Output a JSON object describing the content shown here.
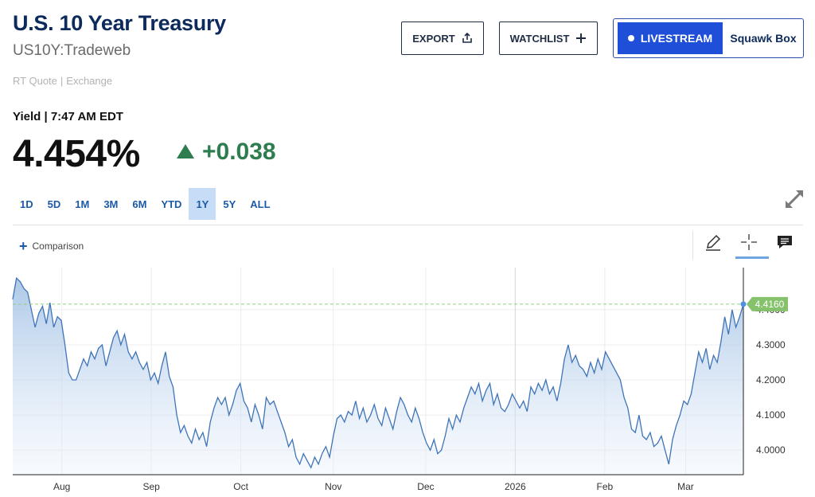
{
  "header": {
    "title": "U.S. 10 Year Treasury",
    "symbol": "US10Y:Tradeweb",
    "quote_type": "RT Quote",
    "quote_sep": "|",
    "exchange": "Exchange"
  },
  "actions": {
    "export_label": "EXPORT",
    "watchlist_label": "WATCHLIST",
    "livestream_label": "LIVESTREAM",
    "squawk_label": "Squawk Box"
  },
  "quote": {
    "label": "Yield | 7:47 AM EDT",
    "price": "4.454%",
    "change": "+0.038",
    "change_color": "#2e7d4f"
  },
  "ranges": [
    "1D",
    "5D",
    "1M",
    "3M",
    "6M",
    "YTD",
    "1Y",
    "5Y",
    "ALL"
  ],
  "active_range": "1Y",
  "toolbar": {
    "comparison_label": "Comparison",
    "tools": [
      "pencil-icon",
      "crosshair-icon",
      "comment-icon"
    ],
    "active_tool": "crosshair-icon"
  },
  "chart_data": {
    "type": "area",
    "current_label": "4.4160",
    "current_value": 4.416,
    "ylim": [
      3.93,
      4.52
    ],
    "yticks": [
      "4.4000",
      "4.3000",
      "4.2000",
      "4.1000",
      "4.0000"
    ],
    "ytick_values": [
      4.4,
      4.3,
      4.2,
      4.1,
      4.0
    ],
    "xticks": [
      "Aug",
      "Sep",
      "Oct",
      "Nov",
      "Dec",
      "2026",
      "Feb",
      "Mar"
    ],
    "xtick_positions": [
      17,
      48,
      79,
      111,
      143,
      174,
      205,
      233
    ],
    "x_range": [
      0,
      253
    ],
    "line_color": "#3e74b8",
    "values": [
      4.43,
      4.49,
      4.48,
      4.46,
      4.45,
      4.4,
      4.35,
      4.39,
      4.41,
      4.36,
      4.42,
      4.35,
      4.38,
      4.37,
      4.3,
      4.22,
      4.2,
      4.2,
      4.23,
      4.26,
      4.24,
      4.28,
      4.26,
      4.29,
      4.3,
      4.24,
      4.28,
      4.32,
      4.34,
      4.3,
      4.33,
      4.28,
      4.26,
      4.28,
      4.25,
      4.23,
      4.25,
      4.2,
      4.22,
      4.19,
      4.24,
      4.28,
      4.21,
      4.18,
      4.1,
      4.05,
      4.07,
      4.04,
      4.02,
      4.06,
      4.03,
      4.05,
      4.01,
      4.08,
      4.12,
      4.15,
      4.13,
      4.15,
      4.1,
      4.13,
      4.17,
      4.19,
      4.14,
      4.12,
      4.08,
      4.13,
      4.1,
      4.06,
      4.15,
      4.13,
      4.14,
      4.11,
      4.08,
      4.05,
      4.01,
      4.03,
      3.98,
      3.96,
      3.99,
      3.97,
      3.95,
      3.98,
      3.96,
      3.99,
      4.01,
      3.98,
      4.04,
      4.09,
      4.1,
      4.08,
      4.11,
      4.1,
      4.14,
      4.09,
      4.12,
      4.08,
      4.1,
      4.13,
      4.09,
      4.07,
      4.12,
      4.09,
      4.06,
      4.11,
      4.15,
      4.13,
      4.1,
      4.08,
      4.12,
      4.09,
      4.05,
      4.02,
      4.0,
      4.03,
      3.99,
      4.0,
      4.04,
      4.09,
      4.06,
      4.1,
      4.08,
      4.12,
      4.15,
      4.18,
      4.16,
      4.19,
      4.14,
      4.17,
      4.19,
      4.13,
      4.16,
      4.12,
      4.11,
      4.13,
      4.16,
      4.14,
      4.12,
      4.14,
      4.11,
      4.18,
      4.16,
      4.19,
      4.17,
      4.2,
      4.16,
      4.18,
      4.14,
      4.19,
      4.26,
      4.3,
      4.25,
      4.27,
      4.24,
      4.23,
      4.21,
      4.25,
      4.22,
      4.26,
      4.23,
      4.28,
      4.26,
      4.24,
      4.22,
      4.2,
      4.15,
      4.12,
      4.06,
      4.05,
      4.1,
      4.04,
      4.03,
      4.05,
      4.01,
      4.02,
      4.04,
      4.0,
      3.96,
      4.03,
      4.07,
      4.1,
      4.14,
      4.13,
      4.16,
      4.22,
      4.28,
      4.25,
      4.29,
      4.23,
      4.27,
      4.25,
      4.31,
      4.38,
      4.33,
      4.4,
      4.35,
      4.38,
      4.416
    ]
  }
}
